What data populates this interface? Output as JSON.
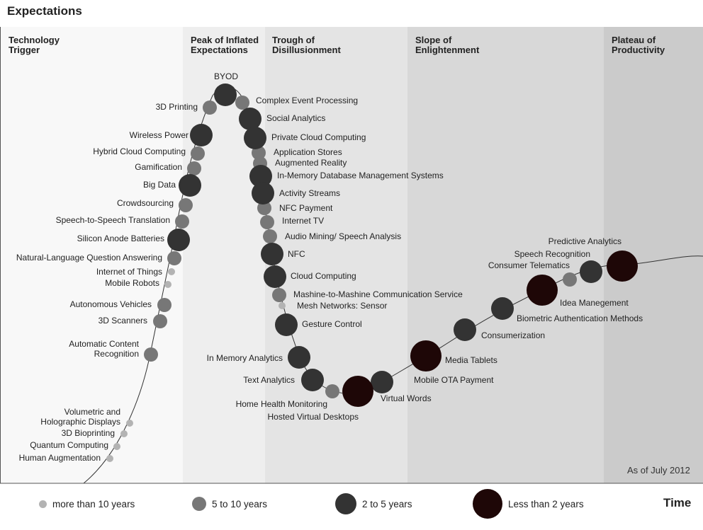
{
  "y_axis_label": "Expectations",
  "x_axis_label": "Time",
  "as_of": "As of July 2012",
  "phases": [
    {
      "title": "Technology Trigger",
      "fill": "#f8f8f8"
    },
    {
      "title": "Peak of Inflated Expectations",
      "fill": "#eeeeee"
    },
    {
      "title": "Trough of Disillusionment",
      "fill": "#e4e4e4"
    },
    {
      "title": "Slope of Enlightenment",
      "fill": "#d8d8d8"
    },
    {
      "title": "Plateau of Productivity",
      "fill": "#cbcbcb"
    }
  ],
  "legend": [
    {
      "key": "gt10",
      "label": "more than 10 years",
      "color": "#b3b3b3"
    },
    {
      "key": "5to10",
      "label": "5 to 10 years",
      "color": "#777777"
    },
    {
      "key": "2to5",
      "label": "2 to 5 years",
      "color": "#333333"
    },
    {
      "key": "lt2",
      "label": "Less than 2 years",
      "color": "#1e0707"
    }
  ],
  "chart_data": {
    "type": "scatter",
    "title": "",
    "xlabel": "Time",
    "ylabel": "Expectations",
    "grid": false,
    "legend_position": "bottom",
    "phase_order": [
      "Technology Trigger",
      "Peak of Inflated Expectations",
      "Trough of Disillusionment",
      "Slope of Enlightenment",
      "Plateau of Productivity"
    ],
    "series": [
      {
        "name": "more than 10 years",
        "values": [
          "Internet of Things",
          "Mobile Robots",
          "Volumetric and Holographic Displays",
          "3D Bioprinting",
          "Quantum Computing",
          "Human Augmentation",
          "Mesh Networks: Sensor"
        ]
      },
      {
        "name": "5 to 10 years",
        "values": [
          "3D Printing",
          "Complex Event Processing",
          "Hybrid Cloud Computing",
          "Gamification",
          "Crowdsourcing",
          "Speech-to-Speech Translation",
          "Natural-Language Question Answering",
          "Autonomous Vehicles",
          "3D Scanners",
          "Automatic Content Recognition",
          "Application Stores",
          "Augmented Reality",
          "NFC Payment",
          "Internet TV",
          "Audio Mining/ Speech Analysis",
          "Mashine-to-Mashine Communication Service",
          "Home Health Monitoring",
          "Hosted Virtual Desktops",
          "Speech Recognition"
        ]
      },
      {
        "name": "2 to 5 years",
        "values": [
          "BYOD",
          "Social Analytics",
          "Private Cloud Computing",
          "Wireless Power",
          "Big Data",
          "In-Memory Database Management Systems",
          "Activity Streams",
          "Silicon Anode Batteries",
          "NFC",
          "Cloud Computing",
          "Gesture Control",
          "In Memory Analytics",
          "Text Analytics",
          "Mobile OTA Payment",
          "Consumerization",
          "Biometric Authentication Methods",
          "Consumer Telematics"
        ]
      },
      {
        "name": "Less than 2 years",
        "values": [
          "Virtual Words",
          "Media Tablets",
          "Idea Manegement",
          "Predictive Analytics"
        ]
      }
    ]
  }
}
